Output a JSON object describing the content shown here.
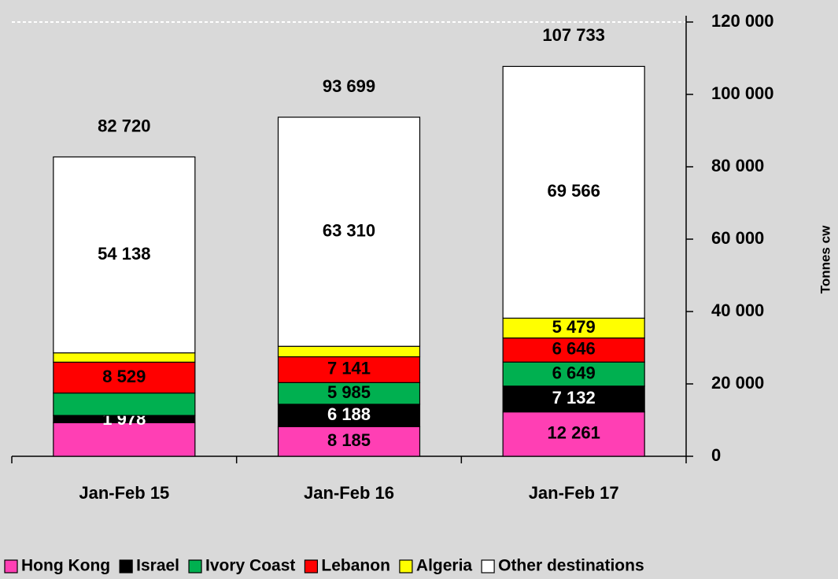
{
  "chart_data": {
    "type": "stacked-bar",
    "categories": [
      "Jan-Feb 15",
      "Jan-Feb 16",
      "Jan-Feb 17"
    ],
    "y_label": "Tonnes cw",
    "ylim": [
      0,
      120000
    ],
    "yticks": [
      0,
      {
        "value": 20000,
        "label": "20 000"
      },
      {
        "value": 40000,
        "label": "40 000"
      },
      {
        "value": 60000,
        "label": "60 000"
      },
      {
        "value": 80000,
        "label": "80 000"
      },
      {
        "value": 100000,
        "label": "100 000"
      },
      {
        "value": 120000,
        "label": "120 000"
      }
    ],
    "series": [
      {
        "name": "Hong Kong",
        "color": "#ff3fb4",
        "values": [
          9300,
          8185,
          12261
        ],
        "value_labels": [
          null,
          "8 185",
          "12 261"
        ],
        "label_color": "#000000"
      },
      {
        "name": "Israel",
        "color": "#000000",
        "values": [
          1978,
          6188,
          7132
        ],
        "value_labels": [
          "1 978",
          "6 188",
          "7 132"
        ],
        "label_color": "#ffffff"
      },
      {
        "name": "Ivory Coast",
        "color": "#00b050",
        "values": [
          6200,
          5985,
          6649
        ],
        "value_labels": [
          null,
          "5 985",
          "6 649"
        ],
        "label_color": "#000000"
      },
      {
        "name": "Lebanon",
        "color": "#ff0000",
        "values": [
          8529,
          7141,
          6646
        ],
        "value_labels": [
          "8 529",
          "7 141",
          "6 646"
        ],
        "label_color": "#000000"
      },
      {
        "name": "Algeria",
        "color": "#ffff00",
        "values": [
          2575,
          2890,
          5479
        ],
        "value_labels": [
          null,
          null,
          "5 479"
        ],
        "label_color": "#000000"
      },
      {
        "name": "Other destinations",
        "color": "#ffffff",
        "values": [
          54138,
          63310,
          69566
        ],
        "value_labels": [
          "54 138",
          "63 310",
          "69 566"
        ],
        "label_color": "#000000"
      }
    ],
    "totals": [
      82720,
      93699,
      107733
    ],
    "total_labels": [
      "82 720",
      "93 699",
      "107 733"
    ],
    "legend": "bottom"
  }
}
